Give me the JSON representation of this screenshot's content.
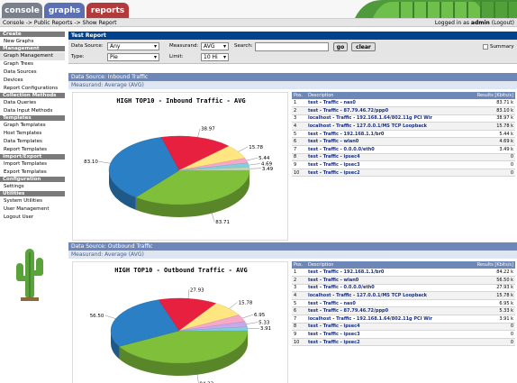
{
  "nav": {
    "tabs": [
      {
        "label": "console",
        "color": "#7a7f8c"
      },
      {
        "label": "graphs",
        "color": "#5b6fb4"
      },
      {
        "label": "reports",
        "color": "#b33a3a"
      }
    ],
    "breadcrumb": "Console -> Public Reports -> Show Report",
    "login_prefix": "Logged in as",
    "user": "admin",
    "logout": "(Logout)"
  },
  "sidebar": [
    {
      "type": "header",
      "label": "Create"
    },
    {
      "type": "item",
      "label": "New Graphs"
    },
    {
      "type": "header",
      "label": "Management"
    },
    {
      "type": "item",
      "label": "Graph Management"
    },
    {
      "type": "item",
      "label": "Graph Trees"
    },
    {
      "type": "item",
      "label": "Data Sources"
    },
    {
      "type": "item",
      "label": "Devices"
    },
    {
      "type": "item",
      "label": "Report Configurations"
    },
    {
      "type": "header",
      "label": "Collection Methods"
    },
    {
      "type": "item",
      "label": "Data Queries"
    },
    {
      "type": "item",
      "label": "Data Input Methods"
    },
    {
      "type": "header",
      "label": "Templates"
    },
    {
      "type": "item",
      "label": "Graph Templates"
    },
    {
      "type": "item",
      "label": "Host Templates"
    },
    {
      "type": "item",
      "label": "Data Templates"
    },
    {
      "type": "item",
      "label": "Report Templates"
    },
    {
      "type": "header",
      "label": "Import/Export"
    },
    {
      "type": "item",
      "label": "Import Templates"
    },
    {
      "type": "item",
      "label": "Export Templates"
    },
    {
      "type": "header",
      "label": "Configuration"
    },
    {
      "type": "item",
      "label": "Settings"
    },
    {
      "type": "header",
      "label": "Utilities"
    },
    {
      "type": "item",
      "label": "System Utilities"
    },
    {
      "type": "item",
      "label": "User Management"
    },
    {
      "type": "item",
      "label": "Logout User"
    }
  ],
  "report": {
    "title": "Test Report",
    "filters": {
      "data_source_label": "Data Source:",
      "data_source_value": "Any",
      "measurand_label": "Measurand:",
      "measurand_value": "AVG",
      "search_label": "Search:",
      "search_value": "",
      "go": "go",
      "clear": "clear",
      "summary_label": "Summary",
      "type_label": "Type:",
      "type_value": "Pie",
      "limit_label": "Limit:",
      "limit_value": "10 Hi"
    },
    "table_headers": {
      "pos": "Pos.",
      "desc": "Description",
      "results": "Results [Kbits/s]"
    }
  },
  "sections": [
    {
      "title": "Data Source: Inbound Traffic",
      "sub": "Measurand: Average (AVG)",
      "chart_data": {
        "type": "pie",
        "title": "HIGH TOP10 - Inbound Traffic - AVG",
        "values": [
          83.71,
          83.1,
          38.97,
          15.78,
          5.44,
          4.69,
          3.49
        ],
        "slice_labels": [
          "83.71",
          "83.10",
          "38.97",
          "15.78",
          "5.44",
          "4.69",
          "3.49"
        ],
        "colors": [
          "#7fbf3a",
          "#2b7fc4",
          "#e8203f",
          "#ffe680",
          "#f7a8c8",
          "#7fcfe0",
          "#c0d8b0"
        ]
      },
      "rows": [
        {
          "pos": "1",
          "desc": "test - Traffic - nas0",
          "val": "83.71 k"
        },
        {
          "pos": "2",
          "desc": "test - Traffic - 87.79.46.72/ppp0",
          "val": "83.10 k"
        },
        {
          "pos": "3",
          "desc": "localhost - Traffic - 192.168.1.64/802.11g PCI Wir",
          "val": "38.97 k"
        },
        {
          "pos": "4",
          "desc": "localhost - Traffic - 127.0.0.1/MS TCP Loopback",
          "val": "15.78 k"
        },
        {
          "pos": "5",
          "desc": "test - Traffic - 192.168.1.1/br0",
          "val": "5.44 k"
        },
        {
          "pos": "6",
          "desc": "test - Traffic - wlan0",
          "val": "4.69 k"
        },
        {
          "pos": "7",
          "desc": "test - Traffic - 0.0.0.0/eth0",
          "val": "3.49 k"
        },
        {
          "pos": "8",
          "desc": "test - Traffic - ipsec4",
          "val": "0"
        },
        {
          "pos": "9",
          "desc": "test - Traffic - ipsec3",
          "val": "0"
        },
        {
          "pos": "10",
          "desc": "test - Traffic - ipsec2",
          "val": "0"
        }
      ]
    },
    {
      "title": "Data Source: Outbound Traffic",
      "sub": "Measurand: Average (AVG)",
      "chart_data": {
        "type": "pie",
        "title": "HIGH TOP10 - Outbound Traffic - AVG",
        "values": [
          84.22,
          56.5,
          27.93,
          15.78,
          6.95,
          5.33,
          3.91
        ],
        "slice_labels": [
          "84.22",
          "56.50",
          "27.93",
          "15.78",
          "6.95",
          "5.33",
          "3.91"
        ],
        "colors": [
          "#7fbf3a",
          "#2b7fc4",
          "#e8203f",
          "#ffe680",
          "#f7a8c8",
          "#c8a8e8",
          "#7fcfe0"
        ]
      },
      "rows": [
        {
          "pos": "1",
          "desc": "test - Traffic - 192.168.1.1/br0",
          "val": "84.22 k"
        },
        {
          "pos": "2",
          "desc": "test - Traffic - wlan0",
          "val": "56.50 k"
        },
        {
          "pos": "3",
          "desc": "test - Traffic - 0.0.0.0/eth0",
          "val": "27.93 k"
        },
        {
          "pos": "4",
          "desc": "localhost - Traffic - 127.0.0.1/MS TCP Loopback",
          "val": "15.78 k"
        },
        {
          "pos": "5",
          "desc": "test - Traffic - nas0",
          "val": "6.95 k"
        },
        {
          "pos": "6",
          "desc": "test - Traffic - 87.79.46.72/ppp0",
          "val": "5.33 k"
        },
        {
          "pos": "7",
          "desc": "localhost - Traffic - 192.168.1.64/802.11g PCI Wir",
          "val": "3.91 k"
        },
        {
          "pos": "8",
          "desc": "test - Traffic - ipsec4",
          "val": "0"
        },
        {
          "pos": "9",
          "desc": "test - Traffic - ipsec3",
          "val": "0"
        },
        {
          "pos": "10",
          "desc": "test - Traffic - ipsec2",
          "val": "0"
        }
      ]
    }
  ]
}
